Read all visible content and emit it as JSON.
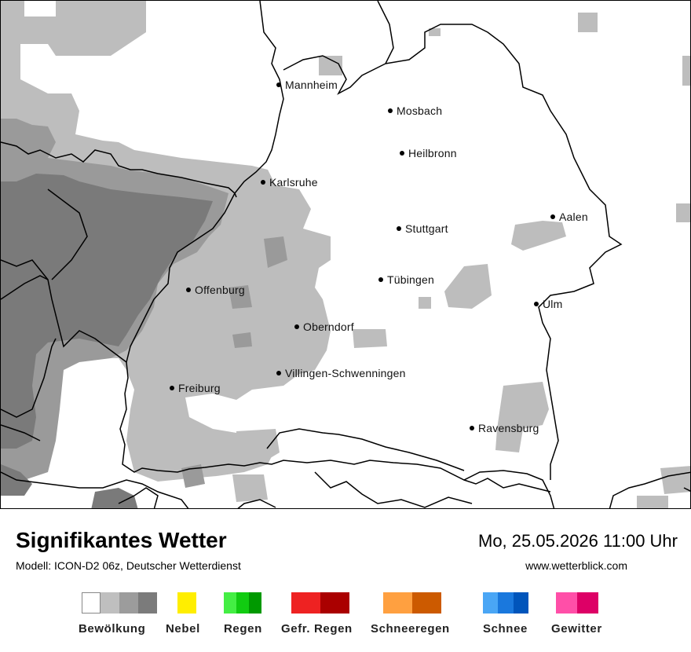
{
  "map": {
    "cities": [
      {
        "name": "Mannheim",
        "key": "mannheim"
      },
      {
        "name": "Mosbach",
        "key": "mosbach"
      },
      {
        "name": "Heilbronn",
        "key": "heilbronn"
      },
      {
        "name": "Karlsruhe",
        "key": "karlsruhe"
      },
      {
        "name": "Aalen",
        "key": "aalen"
      },
      {
        "name": "Stuttgart",
        "key": "stuttgart"
      },
      {
        "name": "Tübingen",
        "key": "tuebingen"
      },
      {
        "name": "Offenburg",
        "key": "offenburg"
      },
      {
        "name": "Ulm",
        "key": "ulm"
      },
      {
        "name": "Oberndorf",
        "key": "oberndorf"
      },
      {
        "name": "Villingen-Schwenningen",
        "key": "villingen"
      },
      {
        "name": "Freiburg",
        "key": "freiburg"
      },
      {
        "name": "Ravensburg",
        "key": "ravensburg"
      }
    ],
    "cloud_colors": {
      "light": "#bdbdbd",
      "medium": "#9a9a9a",
      "dark": "#7a7a7a"
    }
  },
  "footer": {
    "title": "Signifikantes Wetter",
    "subtitle": "Modell: ICON-D2 06z, Deutscher Wetterdienst",
    "datetime": "Mo, 25.05.2026 11:00 Uhr",
    "website": "www.wetterblick.com"
  },
  "legend": [
    {
      "label": "Bewölkung",
      "colors": [
        "#ffffff",
        "#bfbfbf",
        "#9c9c9c",
        "#7b7b7b"
      ]
    },
    {
      "label": "Nebel",
      "colors": [
        "#ffee00"
      ]
    },
    {
      "label": "Regen",
      "colors": [
        "#44ee44",
        "#11cc11",
        "#009900"
      ]
    },
    {
      "label": "Gefr. Regen",
      "colors": [
        "#ee2222",
        "#aa0000"
      ]
    },
    {
      "label": "Schneeregen",
      "colors": [
        "#ffa040",
        "#cc5a00"
      ]
    },
    {
      "label": "Schnee",
      "colors": [
        "#4aa6f5",
        "#1a78dd",
        "#0055bb"
      ]
    },
    {
      "label": "Gewitter",
      "colors": [
        "#ff4fa8",
        "#dd0066"
      ]
    }
  ]
}
